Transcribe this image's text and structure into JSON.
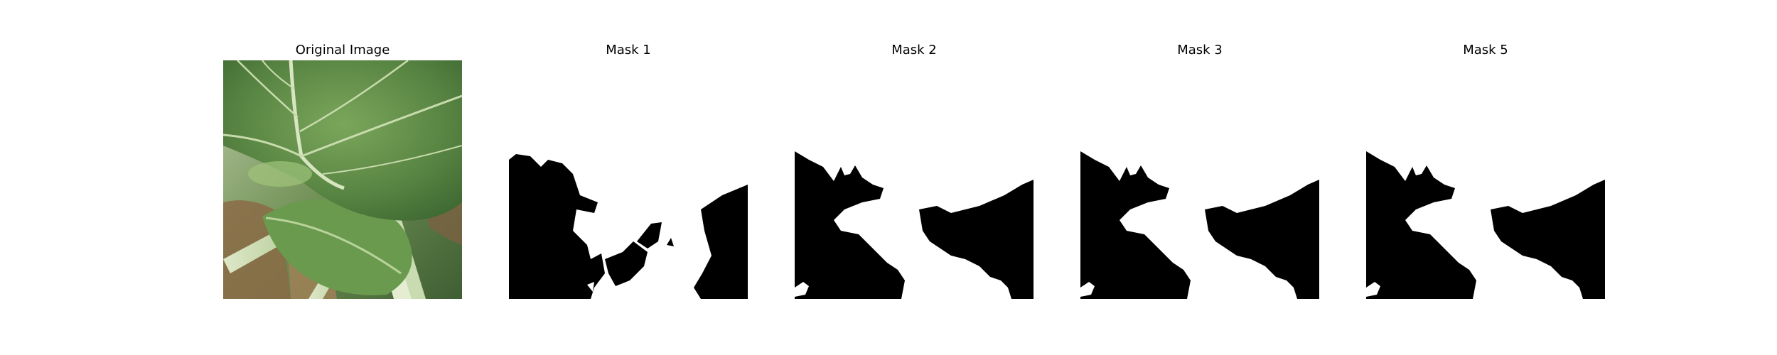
{
  "panels": [
    {
      "title": "Original Image"
    },
    {
      "title": "Mask 1"
    },
    {
      "title": "Mask 2"
    },
    {
      "title": "Mask 3"
    },
    {
      "title": "Mask 5"
    }
  ],
  "colors": {
    "background": "#ffffff",
    "mask_foreground": "#000000",
    "mask_background": "#ffffff",
    "leaf_green": "#5f8a4a"
  }
}
